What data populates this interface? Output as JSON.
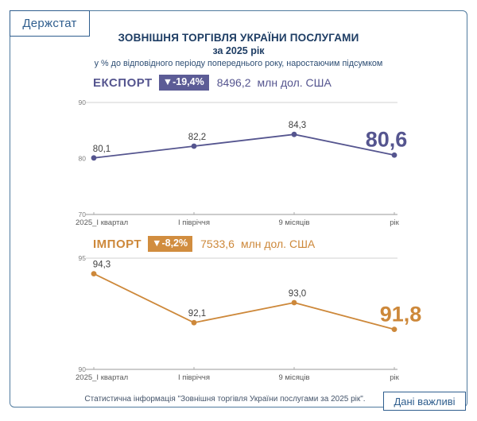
{
  "logo": "Держстат",
  "header": {
    "title": "ЗОВНІШНЯ ТОРГІВЛЯ УКРАЇНИ ПОСЛУГАМИ",
    "subtitle": "за 2025 рік",
    "note": "у % до відповідного періоду попереднього року, наростаючим підсумком"
  },
  "sections": [
    {
      "label": "ЕКСПОРТ",
      "change": "▼-19,4%",
      "value": "8496,2",
      "unit": "млн дол. США",
      "color": "#55558f",
      "badge_bg": "#5c5c96"
    },
    {
      "label": "ІМПОРТ",
      "change": "▼-8,2%",
      "value": "7533,6",
      "unit": "млн дол. США",
      "color": "#cd883a",
      "badge_bg": "#d18d3f"
    }
  ],
  "chart_data": [
    {
      "type": "line",
      "name": "export",
      "title": "ЕКСПОРТ",
      "categories": [
        "2025_І квартал",
        "І півріччя",
        "9 місяців",
        "рік"
      ],
      "values": [
        80.1,
        82.2,
        84.3,
        80.6
      ],
      "labels": [
        "80,1",
        "82,2",
        "84,3",
        "80,6"
      ],
      "ylim": [
        70,
        90
      ],
      "yticks": [
        90,
        80,
        70
      ],
      "color": "#55558f",
      "grid": "top-line-only",
      "highlight_last": true
    },
    {
      "type": "line",
      "name": "import",
      "title": "ІМПОРТ",
      "categories": [
        "2025_І квартал",
        "І півріччя",
        "9 місяців",
        "рік"
      ],
      "values": [
        94.3,
        92.1,
        93.0,
        91.8
      ],
      "labels": [
        "94,3",
        "92,1",
        "93,0",
        "91,8"
      ],
      "ylim": [
        90,
        95
      ],
      "yticks": [
        95,
        90
      ],
      "color": "#cd883a",
      "grid": "top-line-only",
      "highlight_last": true
    }
  ],
  "footer": {
    "source": "Статистична інформація \"Зовнішня торгівля України послугами за 2025 рік\".",
    "badge": "Дані важливі"
  },
  "colors": {
    "frame": "#4f7a9e",
    "box_border": "#2f5e8e",
    "title": "#1e3d64",
    "axis_text": "#7f7f7f",
    "tick_text": "#595959",
    "data_label": "#404040",
    "gridline": "#d0d0d0",
    "axis_line": "#9a9a9a"
  }
}
